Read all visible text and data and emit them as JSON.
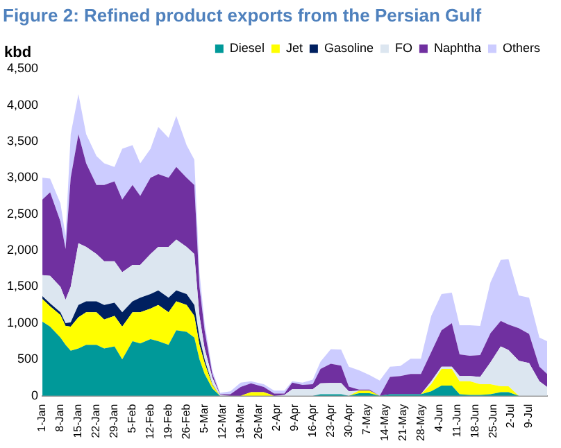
{
  "chart_data": {
    "type": "area",
    "stacked": true,
    "title": "Figure 2: Refined product exports from the Persian Gulf",
    "ylabel": "kbd",
    "x": [
      "--01-01",
      "--01-04",
      "--01-08",
      "--01-10",
      "--01-12",
      "--01-15",
      "--01-18",
      "--01-22",
      "--01-25",
      "--01-29",
      "--02-01",
      "--02-05",
      "--02-08",
      "--02-12",
      "--02-15",
      "--02-19",
      "--02-22",
      "--02-26",
      "--03-01",
      "--03-03",
      "--03-05",
      "--03-08",
      "--03-11",
      "--03-15",
      "--03-19",
      "--03-23",
      "--03-28",
      "--04-01",
      "--04-05",
      "--04-08",
      "--04-12",
      "--04-16",
      "--04-19",
      "--04-23",
      "--04-27",
      "--04-30",
      "--05-04",
      "--05-08",
      "--05-12",
      "--05-16",
      "--05-20",
      "--05-24",
      "--05-28",
      "--06-01",
      "--06-05",
      "--06-09",
      "--06-12",
      "--06-16",
      "--06-20",
      "--06-24",
      "--06-28",
      "--07-01",
      "--07-05",
      "--07-09",
      "--07-13",
      "--07-16"
    ],
    "series": [
      {
        "name": "Diesel",
        "color": "#009999",
        "values": [
          1020,
          950,
          800,
          700,
          620,
          650,
          700,
          700,
          650,
          680,
          500,
          750,
          720,
          780,
          750,
          700,
          900,
          880,
          800,
          500,
          300,
          100,
          0,
          0,
          0,
          0,
          0,
          0,
          0,
          0,
          0,
          0,
          20,
          20,
          20,
          0,
          35,
          35,
          0,
          20,
          20,
          20,
          20,
          60,
          140,
          140,
          20,
          10,
          10,
          20,
          50,
          50,
          0,
          0,
          0,
          0
        ]
      },
      {
        "name": "Jet",
        "color": "#ffff00",
        "values": [
          310,
          280,
          310,
          260,
          330,
          430,
          450,
          450,
          400,
          420,
          450,
          400,
          430,
          420,
          500,
          450,
          400,
          370,
          300,
          200,
          150,
          50,
          0,
          0,
          0,
          50,
          50,
          0,
          0,
          0,
          0,
          0,
          0,
          0,
          0,
          0,
          35,
          35,
          0,
          0,
          0,
          0,
          0,
          100,
          230,
          230,
          180,
          190,
          150,
          140,
          80,
          80,
          0,
          0,
          0,
          0
        ]
      },
      {
        "name": "Gasoline",
        "color": "#002060",
        "values": [
          40,
          40,
          40,
          40,
          60,
          170,
          150,
          150,
          200,
          180,
          200,
          150,
          200,
          200,
          200,
          200,
          150,
          150,
          150,
          100,
          50,
          10,
          0,
          0,
          0,
          0,
          0,
          0,
          0,
          0,
          0,
          0,
          0,
          0,
          0,
          0,
          0,
          0,
          0,
          0,
          0,
          0,
          0,
          0,
          0,
          0,
          0,
          0,
          0,
          0,
          0,
          0,
          0,
          0,
          0,
          0
        ]
      },
      {
        "name": "FO",
        "color": "#dce6f0",
        "values": [
          290,
          380,
          350,
          320,
          490,
          850,
          750,
          650,
          600,
          570,
          550,
          500,
          450,
          550,
          600,
          700,
          700,
          650,
          700,
          300,
          150,
          90,
          10,
          0,
          0,
          0,
          0,
          0,
          10,
          90,
          90,
          90,
          150,
          155,
          155,
          60,
          0,
          0,
          0,
          0,
          0,
          0,
          0,
          40,
          30,
          30,
          70,
          70,
          100,
          300,
          550,
          500,
          480,
          450,
          200,
          120
        ]
      },
      {
        "name": "Naphtha",
        "color": "#7030a0",
        "values": [
          1040,
          1150,
          900,
          700,
          1500,
          1500,
          1150,
          950,
          1050,
          1100,
          1000,
          1100,
          950,
          1050,
          1000,
          950,
          1000,
          950,
          950,
          400,
          250,
          50,
          10,
          20,
          120,
          120,
          70,
          30,
          20,
          90,
          60,
          70,
          200,
          265,
          240,
          65,
          15,
          15,
          0,
          240,
          250,
          280,
          280,
          400,
          500,
          600,
          300,
          280,
          300,
          400,
          350,
          350,
          450,
          400,
          200,
          180
        ]
      },
      {
        "name": "Others",
        "color": "#ccccff",
        "values": [
          300,
          190,
          250,
          180,
          600,
          550,
          400,
          400,
          300,
          200,
          700,
          550,
          450,
          400,
          650,
          550,
          700,
          450,
          350,
          200,
          100,
          50,
          20,
          40,
          60,
          30,
          40,
          40,
          40,
          20,
          30,
          60,
          100,
          200,
          220,
          275,
          265,
          200,
          210,
          140,
          140,
          210,
          210,
          500,
          500,
          420,
          400,
          420,
          400,
          700,
          840,
          900,
          450,
          500,
          400,
          450
        ]
      }
    ],
    "xlim": [
      "--01-01",
      "--07-16"
    ],
    "xticks": [
      {
        "value": "--01-01",
        "label": "1-Jan"
      },
      {
        "value": "--01-08",
        "label": "8-Jan"
      },
      {
        "value": "--01-15",
        "label": "15-Jan"
      },
      {
        "value": "--01-22",
        "label": "22-Jan"
      },
      {
        "value": "--01-29",
        "label": "29-Jan"
      },
      {
        "value": "--02-05",
        "label": "5-Feb"
      },
      {
        "value": "--02-12",
        "label": "12-Feb"
      },
      {
        "value": "--02-19",
        "label": "19-Feb"
      },
      {
        "value": "--02-26",
        "label": "26-Feb"
      },
      {
        "value": "--03-05",
        "label": "5-Mar"
      },
      {
        "value": "--03-12",
        "label": "12-Mar"
      },
      {
        "value": "--03-19",
        "label": "19-Mar"
      },
      {
        "value": "--03-26",
        "label": "26-Mar"
      },
      {
        "value": "--04-02",
        "label": "2-Apr"
      },
      {
        "value": "--04-09",
        "label": "9-Apr"
      },
      {
        "value": "--04-16",
        "label": "16-Apr"
      },
      {
        "value": "--04-23",
        "label": "23-Apr"
      },
      {
        "value": "--04-30",
        "label": "30-Apr"
      },
      {
        "value": "--05-07",
        "label": "7-May"
      },
      {
        "value": "--05-14",
        "label": "14-May"
      },
      {
        "value": "--05-21",
        "label": "21-May"
      },
      {
        "value": "--05-28",
        "label": "28-May"
      },
      {
        "value": "--06-04",
        "label": "4-Jun"
      },
      {
        "value": "--06-11",
        "label": "11-Jun"
      },
      {
        "value": "--06-18",
        "label": "18-Jun"
      },
      {
        "value": "--06-25",
        "label": "25-Jun"
      },
      {
        "value": "--07-02",
        "label": "2-Jul"
      },
      {
        "value": "--07-09",
        "label": "9-Jul"
      }
    ],
    "ylim": [
      0,
      4500
    ],
    "yticks": [
      0,
      500,
      {
        "value": 1000,
        "label": "1,000"
      },
      {
        "value": 1500,
        "label": "1,500"
      },
      {
        "value": 2000,
        "label": "2,000"
      },
      {
        "value": 2500,
        "label": "2,500"
      },
      {
        "value": 3000,
        "label": "3,000"
      },
      {
        "value": 3500,
        "label": "3,500"
      },
      {
        "value": 4000,
        "label": "4,000"
      },
      {
        "value": 4500,
        "label": "4,500"
      }
    ],
    "grid": false,
    "legend": "top right"
  }
}
